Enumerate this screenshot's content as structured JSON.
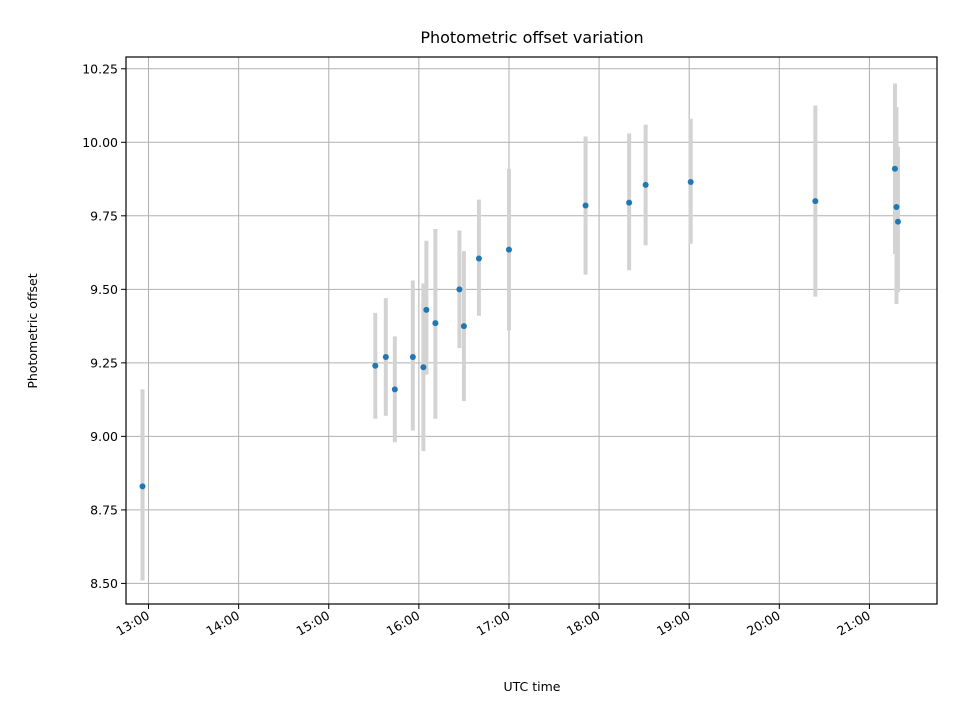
{
  "chart_data": {
    "type": "scatter",
    "title": "Photometric offset variation",
    "xlabel": "UTC time",
    "ylabel": "Photometric offset",
    "xlim": [
      "12:45",
      "21:45"
    ],
    "ylim": [
      8.43,
      10.29
    ],
    "x_ticks": [
      "13:00",
      "14:00",
      "15:00",
      "16:00",
      "17:00",
      "18:00",
      "19:00",
      "20:00",
      "21:00"
    ],
    "y_ticks": [
      "8.50",
      "8.75",
      "9.00",
      "9.25",
      "9.50",
      "9.75",
      "10.00",
      "10.25"
    ],
    "grid": true,
    "colors": {
      "point": "#1f77b4",
      "errorbar": "#d3d3d3",
      "grid": "#b0b0b0"
    },
    "series": [
      {
        "x": [
          "12:56",
          "15:31",
          "15:38",
          "15:44",
          "15:56",
          "16:03",
          "16:05",
          "16:11",
          "16:27",
          "16:30",
          "16:40",
          "17:00",
          "17:51",
          "18:20",
          "18:31",
          "19:01",
          "20:24",
          "21:17",
          "21:18",
          "21:19"
        ],
        "y": [
          8.83,
          9.24,
          9.27,
          9.16,
          9.27,
          9.235,
          9.43,
          9.385,
          9.5,
          9.375,
          9.605,
          9.635,
          9.785,
          9.795,
          9.855,
          9.865,
          9.8,
          9.91,
          9.78,
          9.73
        ],
        "yerr_low": [
          8.51,
          9.06,
          9.07,
          8.98,
          9.02,
          8.95,
          9.21,
          9.06,
          9.3,
          9.12,
          9.41,
          9.36,
          9.55,
          9.565,
          9.65,
          9.655,
          9.475,
          9.62,
          9.45,
          9.49
        ],
        "yerr_high": [
          9.16,
          9.42,
          9.47,
          9.34,
          9.53,
          9.52,
          9.665,
          9.705,
          9.7,
          9.63,
          9.805,
          9.91,
          10.02,
          10.03,
          10.06,
          10.08,
          10.125,
          10.2,
          10.12,
          9.985
        ]
      }
    ]
  }
}
